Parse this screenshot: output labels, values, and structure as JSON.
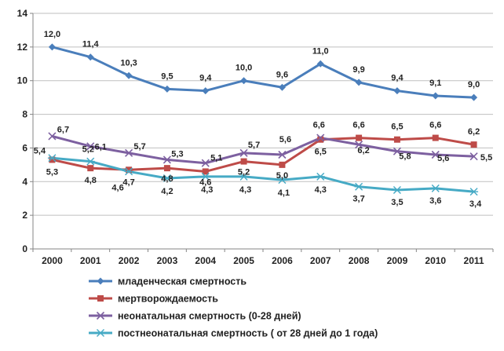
{
  "chart_data": {
    "type": "line",
    "title": "",
    "xlabel": "",
    "ylabel": "",
    "x": [
      "2000",
      "2001",
      "2002",
      "2003",
      "2004",
      "2005",
      "2006",
      "2007",
      "2008",
      "2009",
      "2010",
      "2011"
    ],
    "ylim": [
      0,
      14
    ],
    "yticks": [
      0,
      2,
      4,
      6,
      8,
      10,
      12,
      14
    ],
    "grid": true,
    "legend_position": "bottom",
    "series": [
      {
        "name": "младенческая смертность",
        "color": "#4a7ebb",
        "marker": "diamond",
        "values": [
          12.0,
          11.4,
          10.3,
          9.5,
          9.4,
          10.0,
          9.6,
          11.0,
          9.9,
          9.4,
          9.1,
          9.0
        ],
        "labels": [
          "12,0",
          "11,4",
          "10,3",
          "9,5",
          "9,4",
          "10,0",
          "9,6",
          "11,0",
          "9,9",
          "9,4",
          "9,1",
          "9,0"
        ]
      },
      {
        "name": "мертворождаемость",
        "color": "#be4b48",
        "marker": "square",
        "values": [
          5.3,
          4.8,
          4.7,
          4.8,
          4.6,
          5.2,
          5.0,
          6.5,
          6.6,
          6.5,
          6.6,
          6.2
        ],
        "labels": [
          "5,3",
          "4,8",
          "4,7",
          "4,8",
          "4,6",
          "5,2",
          "5,0",
          "6,5",
          "6,6",
          "6,5",
          "6,6",
          "6,2"
        ]
      },
      {
        "name": "неонатальная смертность (0-28 дней)",
        "color": "#7d60a0",
        "marker": "x",
        "values": [
          6.7,
          6.1,
          5.7,
          5.3,
          5.1,
          5.7,
          5.6,
          6.6,
          6.2,
          5.8,
          5.6,
          5.5
        ],
        "labels": [
          "6,7",
          "6,1",
          "5,7",
          "5,3",
          "5,1",
          "5,7",
          "5,6",
          "6,6",
          "6,2",
          "5,8",
          "5,6",
          "5,5"
        ]
      },
      {
        "name": "постнеонатальная смертность ( от 28 дней до 1 года)",
        "color": "#46aac5",
        "marker": "asterisk",
        "values": [
          5.4,
          5.2,
          4.6,
          4.2,
          4.3,
          4.3,
          4.1,
          4.3,
          3.7,
          3.5,
          3.6,
          3.4
        ],
        "labels": [
          "5,4",
          "5,2",
          "4,6",
          "4,2",
          "4,3",
          "4,3",
          "4,1",
          "4,3",
          "3,7",
          "3,5",
          "3,6",
          "3,4"
        ]
      }
    ]
  }
}
